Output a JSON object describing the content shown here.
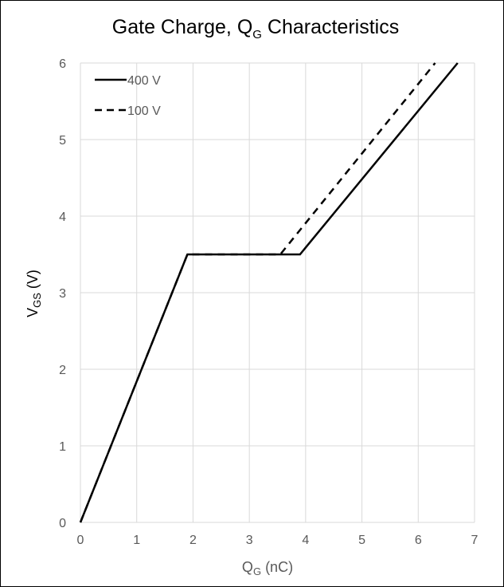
{
  "chart_data": {
    "type": "line",
    "title": {
      "main": "Gate Charge, Q",
      "sub": "G",
      "suffix": " Characteristics"
    },
    "xlabel": {
      "main": "Q",
      "sub": "G",
      "suffix": " (nC)"
    },
    "ylabel": {
      "main": "V",
      "sub": "GS",
      "suffix": " (V)"
    },
    "xlim": [
      0,
      7
    ],
    "ylim": [
      0,
      6
    ],
    "x_ticks": [
      "0",
      "1",
      "2",
      "3",
      "4",
      "5",
      "6",
      "7"
    ],
    "y_ticks": [
      "0",
      "1",
      "2",
      "3",
      "4",
      "5",
      "6"
    ],
    "grid": true,
    "legend_position": "top-left",
    "series": [
      {
        "name": "400 V",
        "style": "solid",
        "color": "#000000",
        "points": [
          [
            0,
            0
          ],
          [
            1.9,
            3.5
          ],
          [
            3.9,
            3.5
          ],
          [
            6.7,
            6.0
          ]
        ]
      },
      {
        "name": "100 V",
        "style": "dashed",
        "color": "#000000",
        "points": [
          [
            0,
            0
          ],
          [
            1.9,
            3.5
          ],
          [
            3.55,
            3.5
          ],
          [
            6.3,
            6.0
          ]
        ]
      }
    ]
  }
}
